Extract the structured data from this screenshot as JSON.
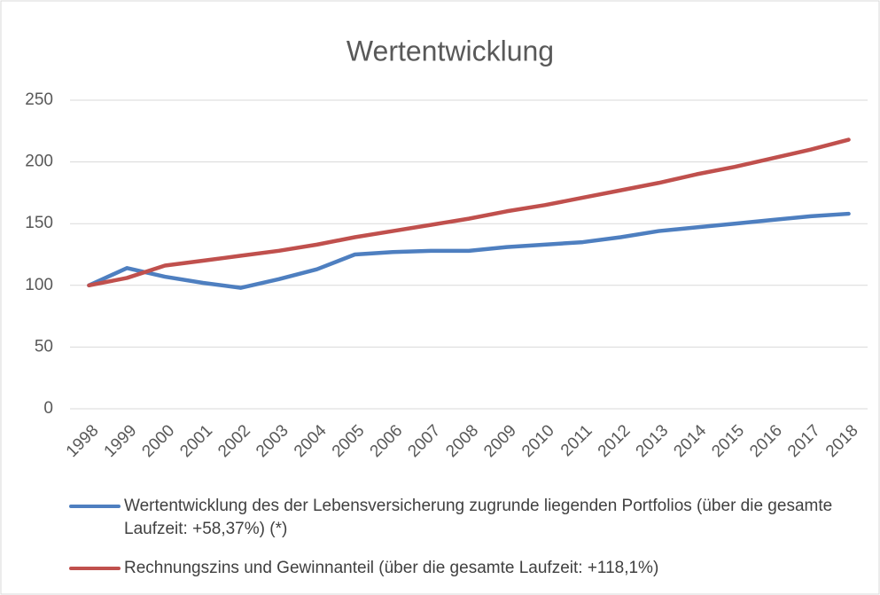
{
  "chart_data": {
    "type": "line",
    "title": "Wertentwicklung",
    "categories": [
      "1998",
      "1999",
      "2000",
      "2001",
      "2002",
      "2003",
      "2004",
      "2005",
      "2006",
      "2007",
      "2008",
      "2009",
      "2010",
      "2011",
      "2012",
      "2013",
      "2014",
      "2015",
      "2016",
      "2017",
      "2018"
    ],
    "series": [
      {
        "name": "Wertentwicklung des der Lebensversicherung zugrunde liegenden Portfolios (über die gesamte Laufzeit: +58,37%) (*)",
        "color": "#4e7fc0",
        "values": [
          100,
          114,
          107,
          102,
          98,
          105,
          113,
          125,
          127,
          128,
          128,
          131,
          133,
          135,
          139,
          144,
          147,
          150,
          153,
          156,
          158
        ]
      },
      {
        "name": "Rechnungszins und Gewinnanteil (über die gesamte Laufzeit: +118,1%)",
        "color": "#c0504d",
        "values": [
          100,
          106,
          116,
          120,
          124,
          128,
          133,
          139,
          144,
          149,
          154,
          160,
          165,
          171,
          177,
          183,
          190,
          196,
          203,
          210,
          218
        ]
      }
    ],
    "ylim": [
      0,
      250
    ],
    "yticks": [
      0,
      50,
      100,
      150,
      200,
      250
    ],
    "grid": true,
    "legend": "bottom"
  }
}
